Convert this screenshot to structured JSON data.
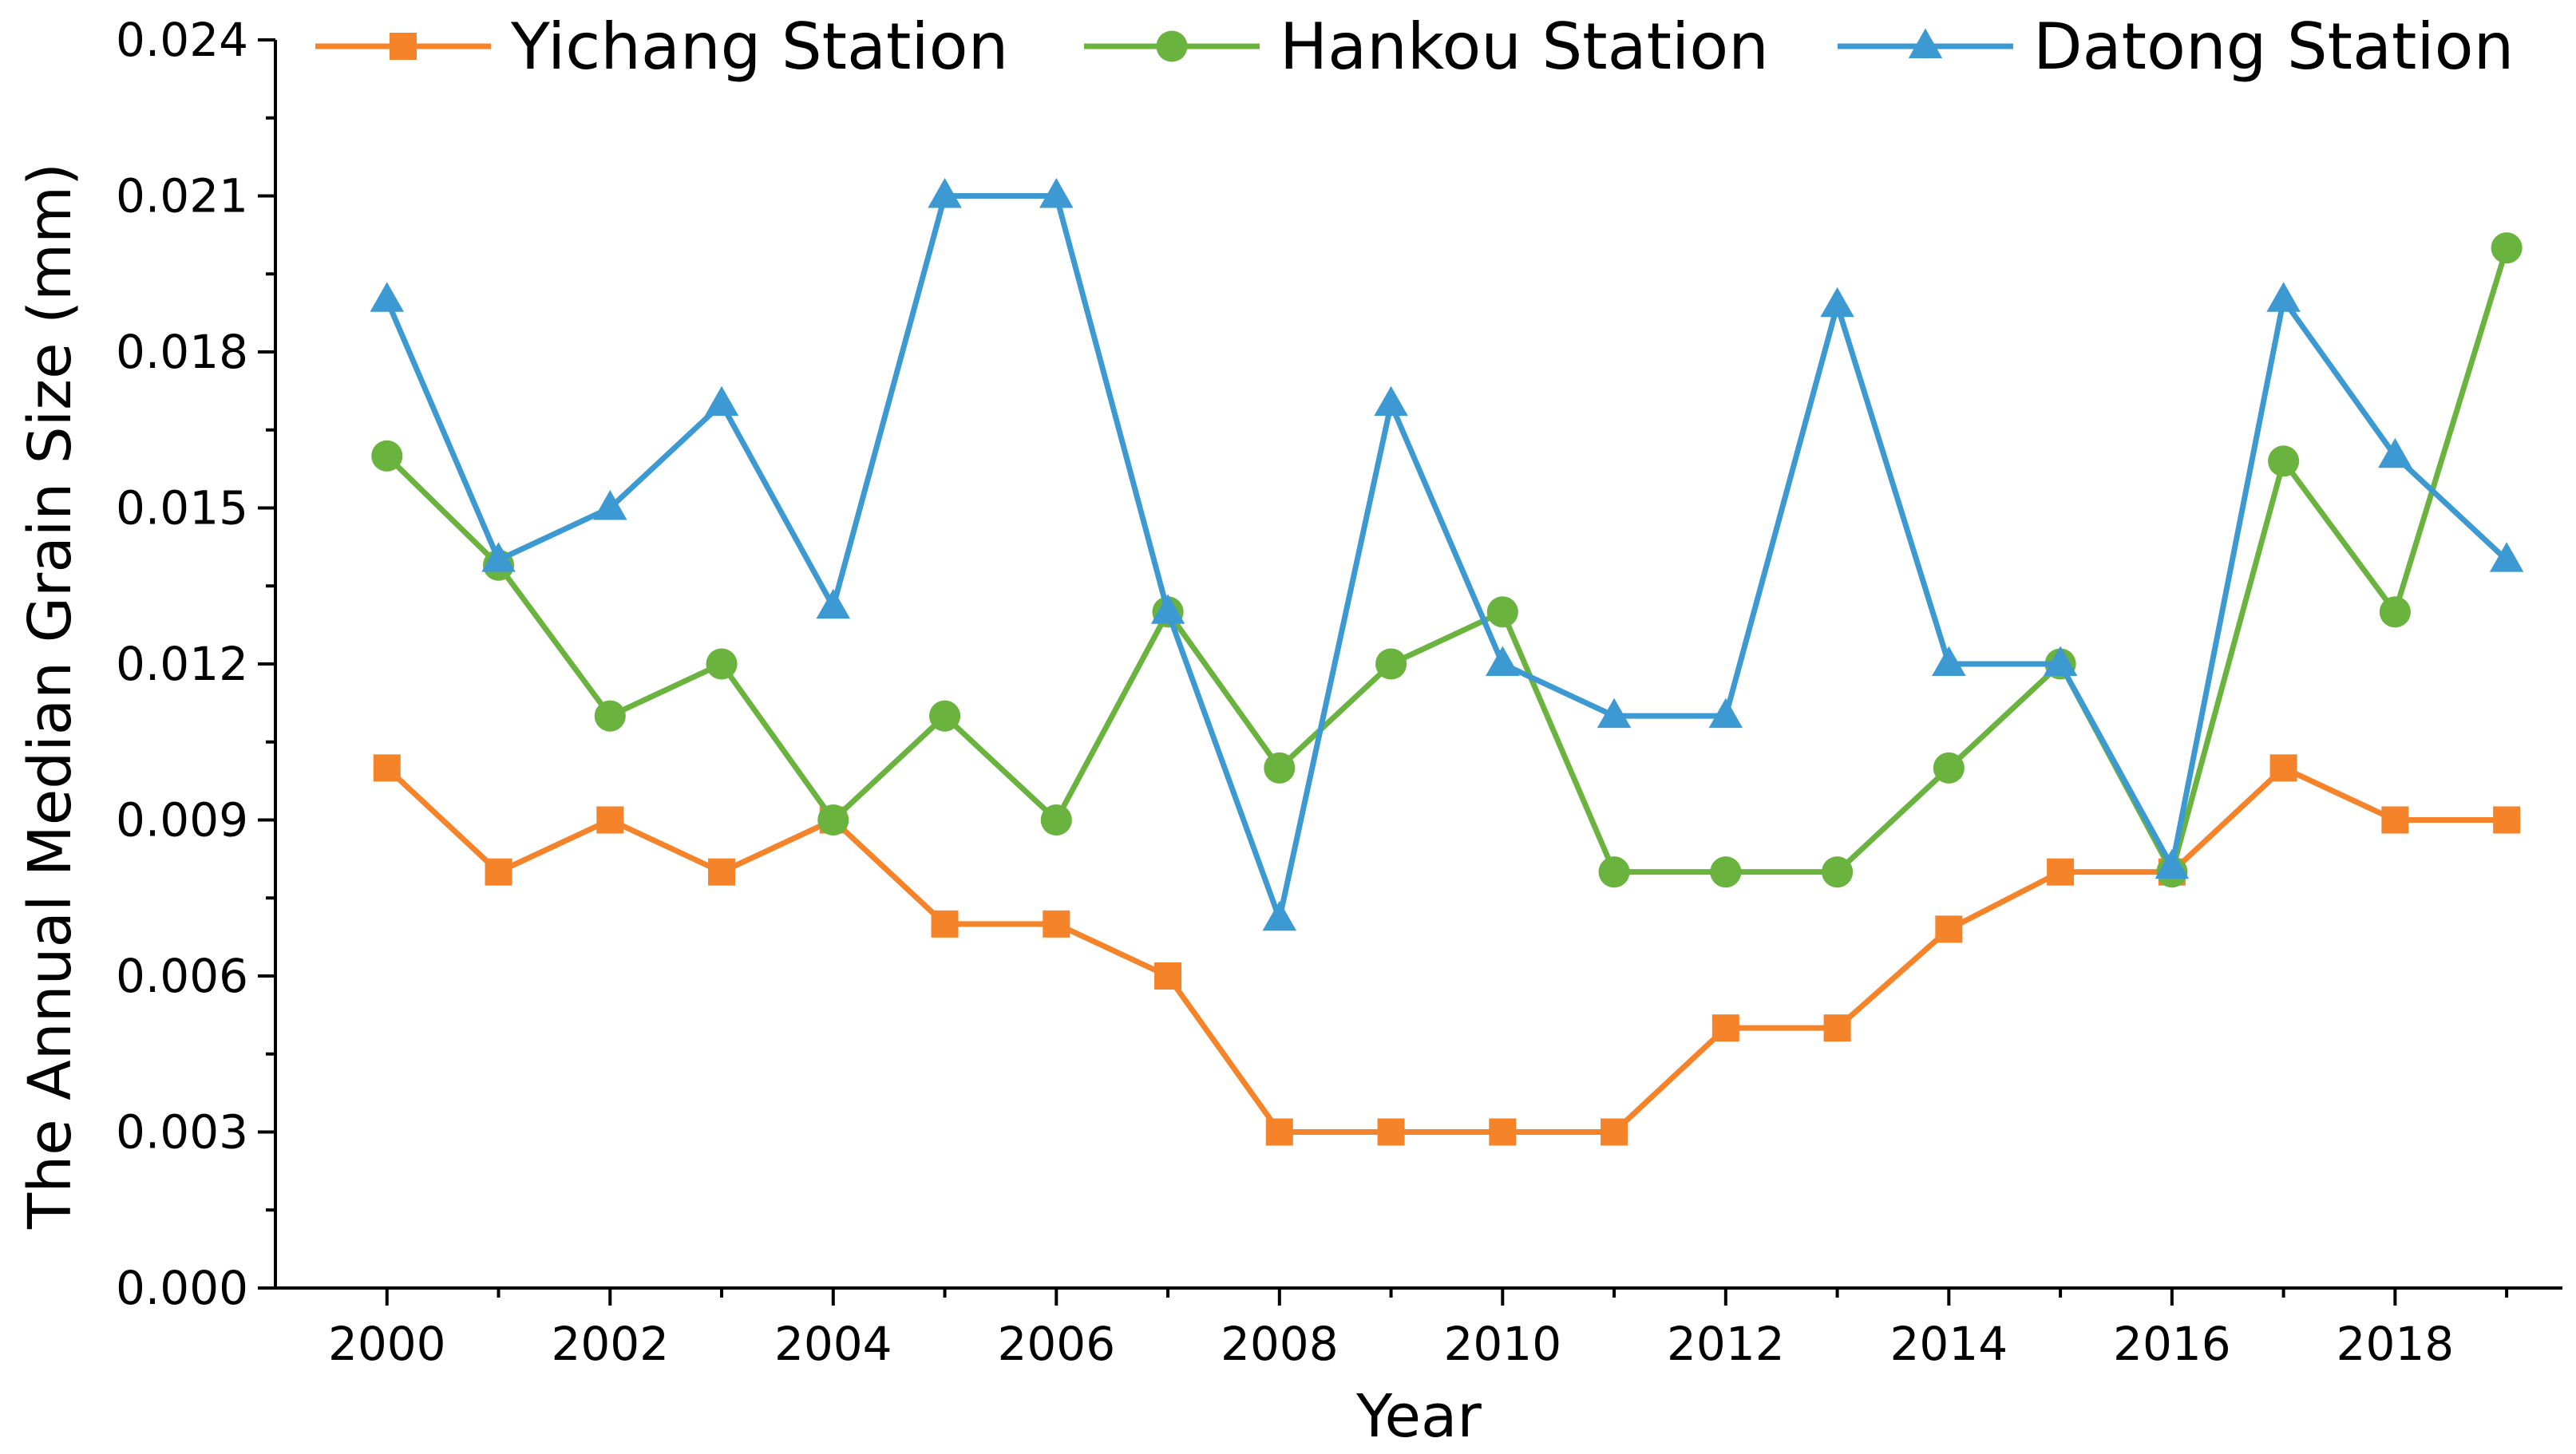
{
  "chart_data": {
    "type": "line",
    "title": "",
    "xlabel": "Year",
    "ylabel": "The Annual Median Grain Size (mm)",
    "x": [
      2000,
      2001,
      2002,
      2003,
      2004,
      2005,
      2006,
      2007,
      2008,
      2009,
      2010,
      2011,
      2012,
      2013,
      2014,
      2015,
      2016,
      2017,
      2018,
      2019
    ],
    "xlim": [
      1999,
      2019.5
    ],
    "ylim": [
      0,
      0.024
    ],
    "x_ticks": [
      "2000",
      "2002",
      "2004",
      "2006",
      "2008",
      "2010",
      "2012",
      "2014",
      "2016",
      "2018"
    ],
    "y_ticks": [
      "0.000",
      "0.003",
      "0.006",
      "0.009",
      "0.012",
      "0.015",
      "0.018",
      "0.021",
      "0.024"
    ],
    "grid": false,
    "legend_position": "top",
    "series": [
      {
        "name": "Yichang Station",
        "color": "#F5832A",
        "marker": "square",
        "values": [
          0.01,
          0.008,
          0.009,
          0.008,
          0.009,
          0.007,
          0.007,
          0.006,
          0.003,
          0.003,
          0.003,
          0.003,
          0.005,
          0.005,
          0.0069,
          0.008,
          0.008,
          0.01,
          0.009,
          0.009
        ]
      },
      {
        "name": "Hankou Station",
        "color": "#6BB33F",
        "marker": "circle",
        "values": [
          0.016,
          0.0139,
          0.011,
          0.012,
          0.009,
          0.011,
          0.009,
          0.013,
          0.01,
          0.012,
          0.013,
          0.008,
          0.008,
          0.008,
          0.01,
          0.012,
          0.008,
          0.0159,
          0.013,
          0.02
        ]
      },
      {
        "name": "Datong Station",
        "color": "#3D99D1",
        "marker": "triangle",
        "values": [
          0.019,
          0.014,
          0.015,
          0.017,
          0.0131,
          0.021,
          0.021,
          0.013,
          0.0071,
          0.017,
          0.012,
          0.011,
          0.011,
          0.0189,
          0.012,
          0.012,
          0.0081,
          0.019,
          0.016,
          0.014
        ]
      }
    ]
  }
}
